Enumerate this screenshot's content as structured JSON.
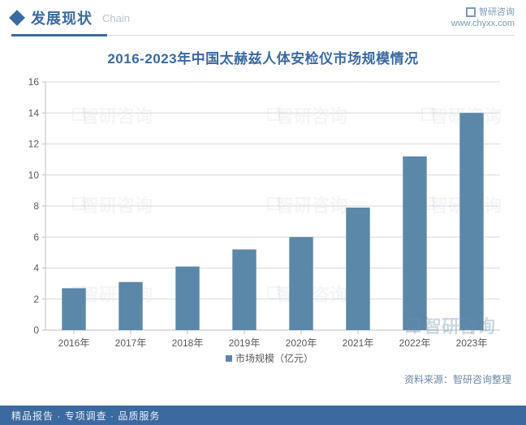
{
  "header": {
    "title": "发展现状",
    "subtitle": "Chain",
    "brand": "智研咨询",
    "site": "www.chyxx.com"
  },
  "chart": {
    "type": "bar",
    "title": "2016-2023年中国太赫兹人体安检仪市场规模情况",
    "categories": [
      "2016年",
      "2017年",
      "2018年",
      "2019年",
      "2020年",
      "2021年",
      "2022年",
      "2023年"
    ],
    "values": [
      2.7,
      3.1,
      4.1,
      5.2,
      6.0,
      7.9,
      11.2,
      14.0
    ],
    "bar_color": "#5b87a8",
    "grid_color": "#d9d9d9",
    "axis_color": "#bfbfbf",
    "text_color": "#595959",
    "background_color": "#ffffff",
    "ylim": [
      0,
      16
    ],
    "ytick_step": 2,
    "bar_width_ratio": 0.42,
    "label_fontsize": 12,
    "title_fontsize": 17,
    "legend_label": "市场规模（亿元）",
    "legend_marker_color": "#5b87a8"
  },
  "source": "资料来源：智研咨询整理",
  "watermark_text": "智研咨询",
  "footer": "精品报告 · 专项调查 · 品质服务"
}
